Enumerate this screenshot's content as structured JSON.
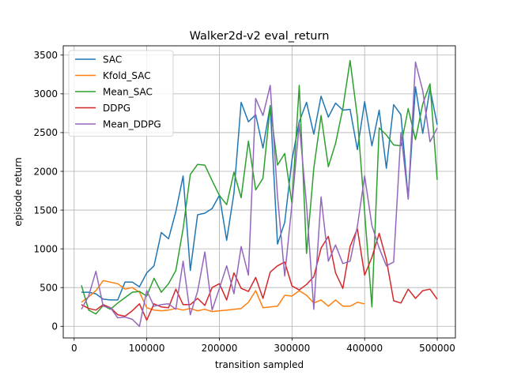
{
  "chart_data": {
    "type": "line",
    "title": "Walker2d-v2 eval_return",
    "xlabel": "transition sampled",
    "ylabel": "episode return",
    "xlim": [
      -15000,
      525000
    ],
    "ylim": [
      -150,
      3620
    ],
    "xticks": [
      0,
      100000,
      200000,
      300000,
      400000,
      500000
    ],
    "xtick_labels": [
      "0",
      "100000",
      "200000",
      "300000",
      "400000",
      "500000"
    ],
    "yticks": [
      0,
      500,
      1000,
      1500,
      2000,
      2500,
      3000,
      3500
    ],
    "ytick_labels": [
      "0",
      "500",
      "1000",
      "1500",
      "2000",
      "2500",
      "3000",
      "3500"
    ],
    "grid": true,
    "legend_position": "top-left",
    "series": [
      {
        "name": "SAC",
        "color": "#1f77b4",
        "x": [
          10000,
          20000,
          30000,
          40000,
          50000,
          60000,
          70000,
          80000,
          90000,
          100000,
          110000,
          120000,
          130000,
          140000,
          150000,
          160000,
          170000,
          180000,
          190000,
          200000,
          210000,
          220000,
          230000,
          240000,
          250000,
          260000,
          270000,
          280000,
          290000,
          300000,
          310000,
          320000,
          330000,
          340000,
          350000,
          360000,
          370000,
          380000,
          390000,
          400000,
          410000,
          420000,
          430000,
          440000,
          450000,
          460000,
          470000,
          480000,
          490000,
          500000
        ],
        "y": [
          440,
          440,
          420,
          350,
          340,
          340,
          570,
          570,
          510,
          690,
          780,
          1210,
          1130,
          1480,
          1940,
          720,
          1440,
          1460,
          1520,
          1690,
          1110,
          1720,
          2890,
          2640,
          2730,
          2300,
          2850,
          1060,
          1340,
          2150,
          2640,
          2890,
          2480,
          2970,
          2700,
          2880,
          2790,
          2800,
          2280,
          2900,
          2330,
          2790,
          2040,
          2860,
          2730,
          1650,
          3090,
          2490,
          3070,
          2600
        ]
      },
      {
        "name": "Kfold_SAC",
        "color": "#ff7f0e",
        "x": [
          10000,
          20000,
          30000,
          40000,
          50000,
          60000,
          70000,
          80000,
          90000,
          100000,
          110000,
          120000,
          130000,
          140000,
          150000,
          160000,
          170000,
          180000,
          190000,
          200000,
          210000,
          220000,
          230000,
          240000,
          250000,
          260000,
          270000,
          280000,
          290000,
          300000,
          310000,
          320000,
          330000,
          340000,
          350000,
          360000,
          370000,
          380000,
          390000,
          400000
        ],
        "y": [
          310,
          380,
          460,
          590,
          570,
          550,
          480,
          500,
          440,
          240,
          210,
          200,
          210,
          230,
          210,
          230,
          200,
          220,
          190,
          200,
          210,
          220,
          230,
          310,
          460,
          240,
          250,
          260,
          400,
          390,
          460,
          400,
          300,
          340,
          260,
          340,
          260,
          260,
          310,
          290
        ]
      },
      {
        "name": "Mean_SAC",
        "color": "#2ca02c",
        "x": [
          10000,
          20000,
          30000,
          40000,
          50000,
          60000,
          70000,
          80000,
          90000,
          100000,
          110000,
          120000,
          130000,
          140000,
          150000,
          160000,
          170000,
          180000,
          190000,
          200000,
          210000,
          220000,
          230000,
          240000,
          250000,
          260000,
          270000,
          280000,
          290000,
          300000,
          310000,
          320000,
          330000,
          340000,
          350000,
          360000,
          370000,
          380000,
          390000,
          400000,
          410000,
          420000,
          430000,
          440000,
          450000,
          460000,
          470000,
          480000,
          490000,
          500000
        ],
        "y": [
          530,
          210,
          160,
          270,
          220,
          300,
          370,
          440,
          450,
          390,
          620,
          440,
          550,
          720,
          1260,
          1960,
          2090,
          2080,
          1880,
          1690,
          1570,
          1990,
          1660,
          2390,
          1760,
          1910,
          2840,
          2080,
          2230,
          1580,
          3110,
          940,
          2040,
          2720,
          2060,
          2360,
          2810,
          3430,
          2700,
          1470,
          250,
          2560,
          2470,
          2340,
          2330,
          2810,
          2410,
          2870,
          3130,
          1890
        ]
      },
      {
        "name": "DDPG",
        "color": "#d62728",
        "x": [
          10000,
          20000,
          30000,
          40000,
          50000,
          60000,
          70000,
          80000,
          90000,
          100000,
          110000,
          120000,
          130000,
          140000,
          150000,
          160000,
          170000,
          180000,
          190000,
          200000,
          210000,
          220000,
          230000,
          240000,
          250000,
          260000,
          270000,
          280000,
          290000,
          300000,
          310000,
          320000,
          330000,
          340000,
          350000,
          360000,
          370000,
          380000,
          390000,
          400000,
          410000,
          420000,
          430000,
          440000,
          450000,
          460000,
          470000,
          480000,
          490000,
          500000
        ],
        "y": [
          280,
          230,
          210,
          280,
          240,
          150,
          130,
          200,
          290,
          80,
          290,
          250,
          240,
          480,
          280,
          280,
          360,
          270,
          500,
          550,
          340,
          690,
          490,
          450,
          630,
          360,
          700,
          780,
          830,
          520,
          470,
          540,
          640,
          1010,
          1160,
          690,
          490,
          1030,
          1260,
          660,
          890,
          1200,
          860,
          330,
          300,
          480,
          360,
          460,
          480,
          350
        ]
      },
      {
        "name": "Mean_DDPG",
        "color": "#9467bd",
        "x": [
          10000,
          20000,
          30000,
          40000,
          50000,
          60000,
          70000,
          80000,
          90000,
          100000,
          110000,
          120000,
          130000,
          140000,
          150000,
          160000,
          170000,
          180000,
          190000,
          200000,
          210000,
          220000,
          230000,
          240000,
          250000,
          260000,
          270000,
          280000,
          290000,
          300000,
          310000,
          320000,
          330000,
          340000,
          350000,
          360000,
          370000,
          380000,
          390000,
          400000,
          410000,
          420000,
          430000,
          440000,
          450000,
          460000,
          470000,
          480000,
          490000,
          500000
        ],
        "y": [
          220,
          390,
          710,
          260,
          240,
          110,
          120,
          90,
          0,
          460,
          260,
          280,
          290,
          220,
          840,
          150,
          450,
          960,
          210,
          490,
          780,
          420,
          1030,
          660,
          2940,
          2720,
          3110,
          1680,
          650,
          1580,
          2610,
          1570,
          220,
          1670,
          840,
          1050,
          810,
          840,
          1290,
          1940,
          1300,
          1010,
          780,
          830,
          2500,
          1640,
          3410,
          3040,
          2380,
          2560
        ]
      }
    ]
  }
}
